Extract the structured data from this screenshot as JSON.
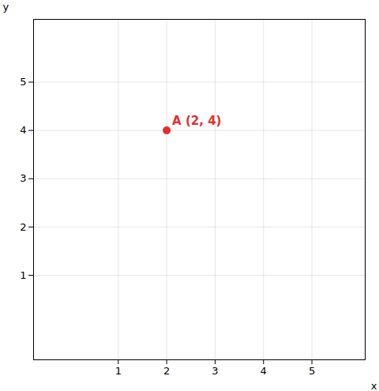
{
  "chart_data": {
    "type": "scatter",
    "xlabel": "x",
    "ylabel": "y",
    "x": [
      2
    ],
    "values": [
      4
    ],
    "color": "#e03030",
    "annotations": [
      {
        "text": "A (2, 4)",
        "x": 2,
        "y": 4
      }
    ],
    "xlim": [
      -0.75,
      6.1
    ],
    "ylim": [
      -0.75,
      6.3
    ],
    "xticks": [
      1,
      2,
      3,
      4,
      5
    ],
    "yticks": [
      1,
      2,
      3,
      4,
      5
    ],
    "grid": true
  }
}
